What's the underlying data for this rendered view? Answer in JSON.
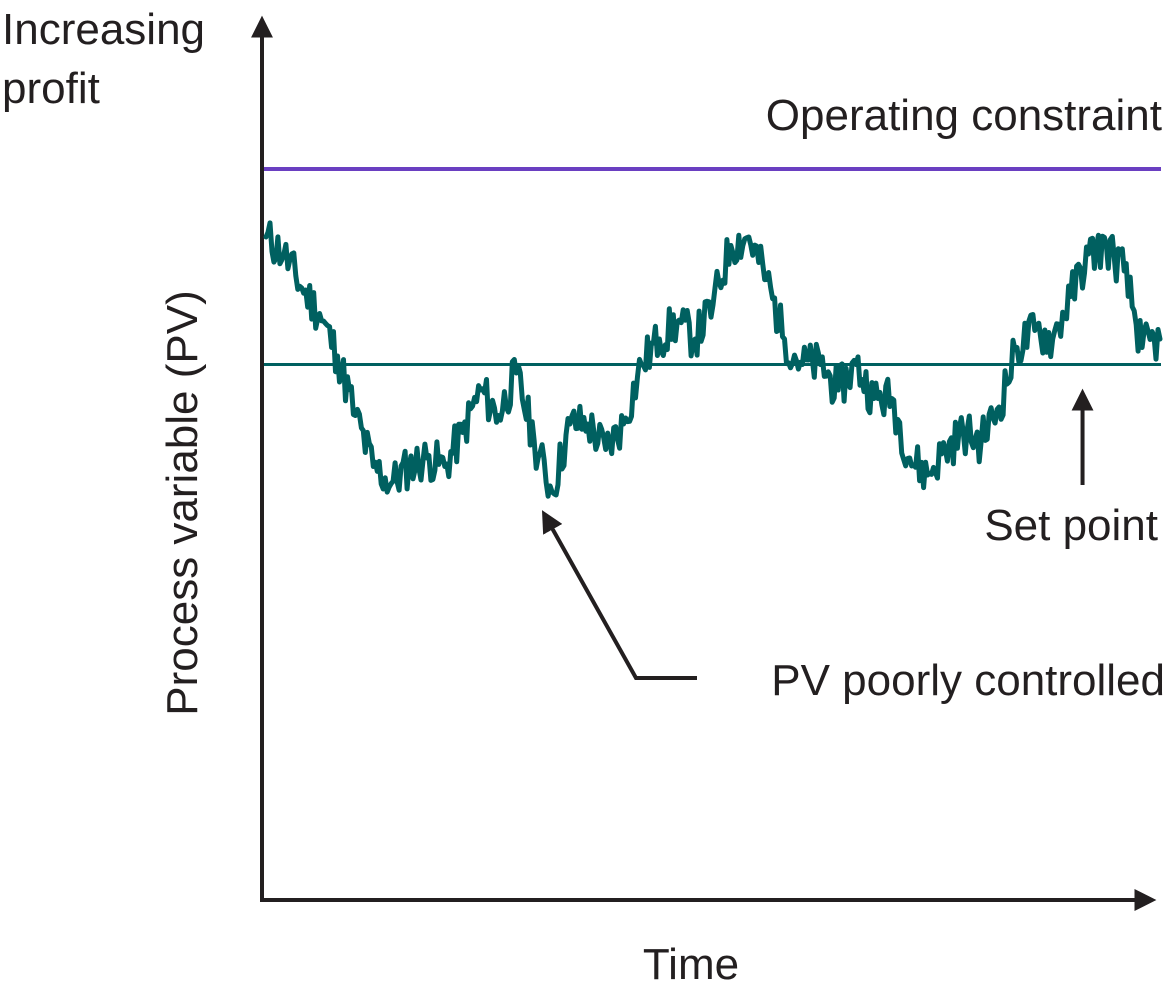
{
  "chart_data": {
    "type": "line",
    "title": "",
    "xlabel": "Time",
    "ylabel": "Process variable (PV)",
    "y_direction_label": "Increasing profit",
    "ylim": [
      0,
      100
    ],
    "xlim": [
      0,
      100
    ],
    "grid": false,
    "legend": "none",
    "constraint": {
      "label": "Operating constraint",
      "value": 86,
      "color": "#6a3fc1"
    },
    "set_point": {
      "label": "Set point",
      "value": 63,
      "color": "#006060"
    },
    "annotations": [
      {
        "text": "PV poorly controlled",
        "target_x": 31,
        "target_y": 48
      },
      {
        "text": "Set point",
        "target_x": 91,
        "target_y": 62
      }
    ],
    "series": [
      {
        "color": "#006060",
        "x": [
          0,
          2,
          4,
          6,
          8,
          10,
          12,
          14,
          16,
          18,
          20,
          22,
          24,
          26,
          28,
          30,
          32,
          34,
          36,
          38,
          40,
          42,
          44,
          46,
          48,
          50,
          52,
          54,
          56,
          58,
          60,
          62,
          64,
          66,
          68,
          70,
          72,
          74,
          76,
          78,
          80,
          82,
          84,
          86,
          88,
          90,
          92,
          94,
          96,
          98,
          100
        ],
        "values": [
          78,
          76,
          72,
          69,
          64,
          57,
          51,
          49,
          51,
          52,
          51,
          55,
          60,
          57,
          62,
          54,
          48,
          56,
          56,
          53,
          56,
          63,
          66,
          68,
          66,
          70,
          77,
          78,
          73,
          66,
          63,
          63,
          60,
          63,
          59,
          59,
          52,
          50,
          53,
          55,
          54,
          58,
          65,
          67,
          66,
          71,
          76,
          77,
          74,
          65,
          66
        ]
      }
    ]
  }
}
